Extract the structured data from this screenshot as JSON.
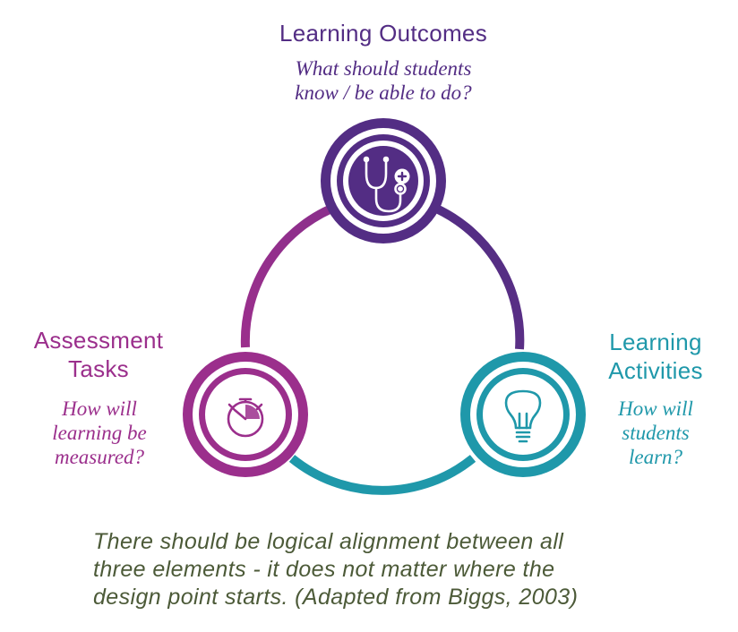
{
  "colors": {
    "outcomes": "#532d84",
    "assessment": "#9b2f8c",
    "activities": "#1f98aa",
    "footer": "#4c5a38"
  },
  "outcomes": {
    "title": "Learning Outcomes",
    "question_lines": [
      "What should students",
      "know / be able to do?"
    ],
    "icon": "stethoscope-icon"
  },
  "assessment": {
    "title_lines": [
      "Assessment",
      "Tasks"
    ],
    "question_lines": [
      "How will",
      "learning be",
      "measured?"
    ],
    "icon": "stopwatch-icon"
  },
  "activities": {
    "title_lines": [
      "Learning",
      "Activities"
    ],
    "question_lines": [
      "How will",
      "students",
      "learn?"
    ],
    "icon": "lightbulb-icon"
  },
  "footer": {
    "lines": [
      "There should be logical alignment between all",
      "three elements - it does not matter where the",
      "design point starts. (Adapted from Biggs, 2003)"
    ]
  }
}
